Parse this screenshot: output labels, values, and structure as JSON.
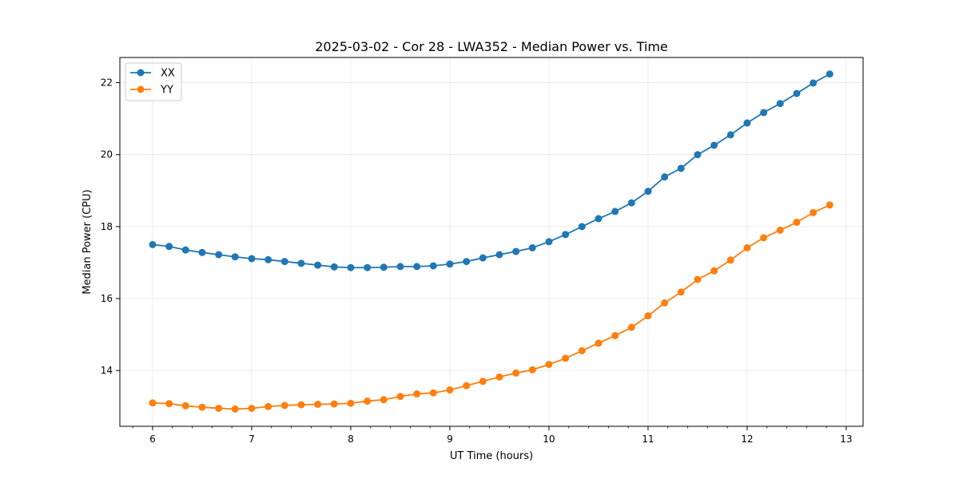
{
  "chart_data": {
    "type": "line",
    "title": "2025-03-02 - Cor 28 - LWA352 - Median Power vs. Time",
    "xlabel": "UT Time (hours)",
    "ylabel": "Median Power (CPU)",
    "xlim": [
      5.67,
      13.17
    ],
    "ylim": [
      12.45,
      22.7
    ],
    "xticks": [
      6,
      7,
      8,
      9,
      10,
      11,
      12,
      13
    ],
    "yticks": [
      14,
      16,
      18,
      20,
      22
    ],
    "grid": true,
    "legend_position": "upper-left",
    "x": [
      6.0,
      6.167,
      6.333,
      6.5,
      6.667,
      6.833,
      7.0,
      7.167,
      7.333,
      7.5,
      7.667,
      7.833,
      8.0,
      8.167,
      8.333,
      8.5,
      8.667,
      8.833,
      9.0,
      9.167,
      9.333,
      9.5,
      9.667,
      9.833,
      10.0,
      10.167,
      10.333,
      10.5,
      10.667,
      10.833,
      11.0,
      11.167,
      11.333,
      11.5,
      11.667,
      11.833,
      12.0,
      12.167,
      12.333,
      12.5,
      12.667,
      12.833
    ],
    "series": [
      {
        "name": "XX",
        "color": "#1f77b4",
        "values": [
          17.5,
          17.45,
          17.35,
          17.28,
          17.22,
          17.16,
          17.11,
          17.08,
          17.03,
          16.98,
          16.93,
          16.88,
          16.86,
          16.86,
          16.87,
          16.89,
          16.89,
          16.91,
          16.96,
          17.03,
          17.13,
          17.22,
          17.31,
          17.41,
          17.58,
          17.78,
          18.0,
          18.22,
          18.42,
          18.66,
          18.98,
          19.38,
          19.62,
          20.0,
          20.26,
          20.55,
          20.88,
          21.17,
          21.42,
          21.7,
          21.99,
          22.24
        ]
      },
      {
        "name": "YY",
        "color": "#ff7f0e",
        "values": [
          13.1,
          13.08,
          13.02,
          12.98,
          12.95,
          12.93,
          12.95,
          13.0,
          13.03,
          13.05,
          13.06,
          13.07,
          13.09,
          13.15,
          13.19,
          13.28,
          13.35,
          13.38,
          13.46,
          13.58,
          13.7,
          13.82,
          13.93,
          14.02,
          14.17,
          14.34,
          14.55,
          14.76,
          14.97,
          15.2,
          15.52,
          15.88,
          16.18,
          16.53,
          16.77,
          17.07,
          17.41,
          17.69,
          17.9,
          18.12,
          18.39,
          18.6
        ]
      }
    ]
  }
}
